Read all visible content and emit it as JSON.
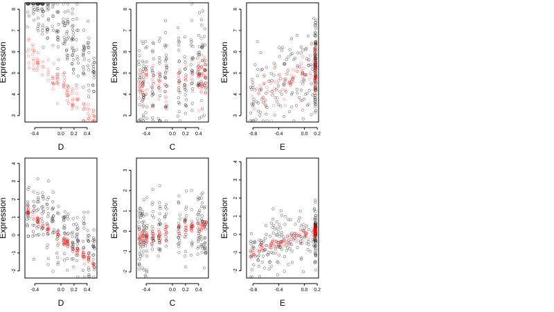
{
  "colors": {
    "observed": "#000000",
    "fitted": "#ff0000",
    "background": "#ffffff"
  },
  "chart_data": [
    {
      "type": "scatter",
      "xlabel": "D",
      "ylabel": "Expression",
      "xlim": [
        -0.55,
        0.55
      ],
      "ylim": [
        2.7,
        8.3
      ],
      "xticks": [
        -0.4,
        0.0,
        0.2,
        0.4
      ],
      "xtick_labels": [
        "-0.4",
        "0.0",
        "0.2",
        "0.4"
      ],
      "yticks": [
        3,
        4,
        5,
        6,
        7,
        8
      ],
      "ytick_labels": [
        "3",
        "4",
        "5",
        "6",
        "7",
        "8"
      ],
      "x_clusters": [
        -0.5,
        -0.42,
        -0.35,
        -0.28,
        -0.2,
        -0.12,
        -0.05,
        0.05,
        0.1,
        0.18,
        0.25,
        0.35,
        0.42,
        0.5
      ],
      "black_trend": [
        7.0,
        -3.6
      ],
      "black_spread": 0.85,
      "red_trend": [
        4.4,
        -3.3
      ],
      "red_spread": 0.3
    },
    {
      "type": "scatter",
      "xlabel": "C",
      "ylabel": "Expression",
      "xlim": [
        -0.55,
        0.55
      ],
      "ylim": [
        2.7,
        8.3
      ],
      "xticks": [
        -0.4,
        0.0,
        0.2,
        0.4
      ],
      "xtick_labels": [
        "-0.4",
        "0.0",
        "0.2",
        "0.4"
      ],
      "yticks": [
        3,
        4,
        5,
        6,
        7,
        8
      ],
      "ytick_labels": [
        "3",
        "4",
        "5",
        "6",
        "7",
        "8"
      ],
      "x_clusters": [
        -0.5,
        -0.45,
        -0.4,
        -0.3,
        -0.2,
        -0.1,
        0.1,
        0.2,
        0.3,
        0.4,
        0.45,
        0.5
      ],
      "black_trend": [
        4.8,
        0.4
      ],
      "black_spread": 1.2,
      "red_trend": [
        4.6,
        0.5
      ],
      "red_spread": 0.55
    },
    {
      "type": "scatter",
      "xlabel": "E",
      "ylabel": "Expression",
      "xlim": [
        -0.9,
        0.22
      ],
      "ylim": [
        2.7,
        8.3
      ],
      "xticks": [
        -0.8,
        -0.4,
        0.0,
        0.2
      ],
      "xtick_labels": [
        "-0.8",
        "-0.4",
        "0.0",
        "0.2"
      ],
      "yticks": [
        3,
        4,
        5,
        6,
        7,
        8
      ],
      "ytick_labels": [
        "3",
        "4",
        "5",
        "6",
        "7",
        "8"
      ],
      "x_clusters": [],
      "black_trend": [
        5.0,
        1.5
      ],
      "black_spread": 1.1,
      "red_trend": [
        5.0,
        1.6
      ],
      "red_spread": 0.5
    },
    {
      "type": "scatter",
      "xlabel": "D",
      "ylabel": "Expression",
      "xlim": [
        -0.55,
        0.55
      ],
      "ylim": [
        -2.4,
        4.3
      ],
      "xticks": [
        -0.4,
        0.0,
        0.2,
        0.4
      ],
      "xtick_labels": [
        "-0.4",
        "0.0",
        "0.2",
        "0.4"
      ],
      "yticks": [
        -2,
        -1,
        0,
        1,
        2,
        3,
        4
      ],
      "ytick_labels": [
        "-2",
        "-1",
        "0",
        "1",
        "2",
        "3",
        "4"
      ],
      "x_clusters": [
        -0.5,
        -0.42,
        -0.35,
        -0.28,
        -0.2,
        -0.12,
        -0.05,
        0.05,
        0.1,
        0.18,
        0.25,
        0.35,
        0.42,
        0.5
      ],
      "black_trend": [
        0.2,
        -2.6
      ],
      "black_spread": 0.9,
      "red_trend": [
        -0.2,
        -2.9
      ],
      "red_spread": 0.15
    },
    {
      "type": "scatter",
      "xlabel": "C",
      "ylabel": "Expression",
      "xlim": [
        -0.55,
        0.55
      ],
      "ylim": [
        -2.3,
        3.6
      ],
      "xticks": [
        -0.4,
        0.0,
        0.2,
        0.4
      ],
      "xtick_labels": [
        "-0.4",
        "0.0",
        "0.2",
        "0.4"
      ],
      "yticks": [
        -2,
        -1,
        0,
        1,
        2,
        3
      ],
      "ytick_labels": [
        "-2",
        "-1",
        "0",
        "1",
        "2",
        "3"
      ],
      "x_clusters": [
        -0.5,
        -0.45,
        -0.4,
        -0.3,
        -0.2,
        -0.1,
        0.1,
        0.2,
        0.3,
        0.4,
        0.45,
        0.5
      ],
      "black_trend": [
        0.0,
        0.6
      ],
      "black_spread": 0.9,
      "red_trend": [
        0.0,
        0.7
      ],
      "red_spread": 0.2
    },
    {
      "type": "scatter",
      "xlabel": "E",
      "ylabel": "Expression",
      "xlim": [
        -0.9,
        0.22
      ],
      "ylim": [
        -2.4,
        4.2
      ],
      "xticks": [
        -0.8,
        -0.4,
        0.0,
        0.2
      ],
      "xtick_labels": [
        "-0.8",
        "-0.4",
        "0.0",
        "0.2"
      ],
      "yticks": [
        -2,
        -1,
        0,
        1,
        2,
        3,
        4
      ],
      "ytick_labels": [
        "-2",
        "-1",
        "0",
        "1",
        "2",
        "3",
        "4"
      ],
      "x_clusters": [],
      "black_trend": [
        0.0,
        1.2
      ],
      "black_spread": 0.8,
      "red_trend": [
        0.0,
        1.2
      ],
      "red_spread": 0.15
    }
  ]
}
